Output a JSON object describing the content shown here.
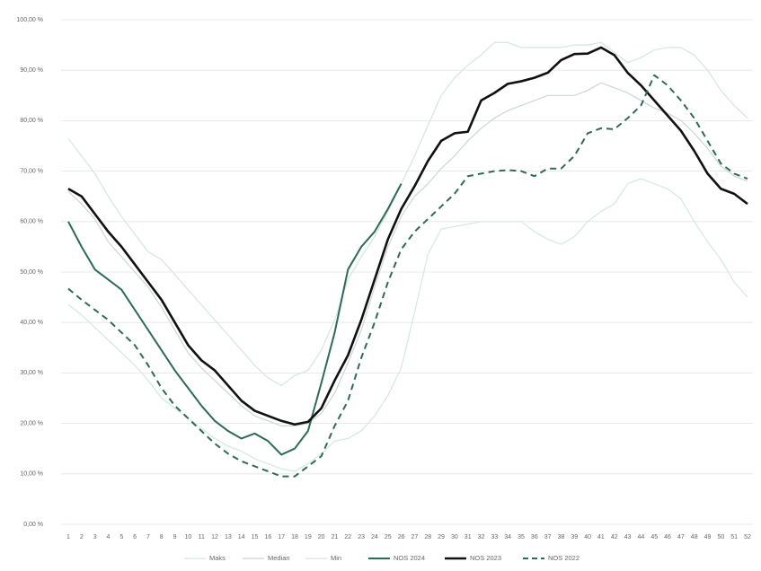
{
  "chart_data": {
    "type": "line",
    "categories": [
      "1",
      "2",
      "3",
      "4",
      "5",
      "6",
      "7",
      "8",
      "9",
      "10",
      "11",
      "12",
      "13",
      "14",
      "15",
      "16",
      "17",
      "18",
      "19",
      "20",
      "21",
      "22",
      "23",
      "24",
      "25",
      "26",
      "27",
      "28",
      "29",
      "30",
      "31",
      "32",
      "33",
      "34",
      "35",
      "36",
      "37",
      "38",
      "39",
      "40",
      "41",
      "42",
      "43",
      "44",
      "45",
      "46",
      "47",
      "48",
      "49",
      "50",
      "51",
      "52"
    ],
    "ylim": [
      0,
      100
    ],
    "yticks": [
      {
        "value": 0,
        "label": "0,00 %"
      },
      {
        "value": 10,
        "label": "10,00 %"
      },
      {
        "value": 20,
        "label": "20,00 %"
      },
      {
        "value": 30,
        "label": "30,00 %"
      },
      {
        "value": 40,
        "label": "40,00 %"
      },
      {
        "value": 50,
        "label": "50,00 %"
      },
      {
        "value": 60,
        "label": "60,00 %"
      },
      {
        "value": 70,
        "label": "70,00 %"
      },
      {
        "value": 80,
        "label": "80,00 %"
      },
      {
        "value": 90,
        "label": "90,00 %"
      },
      {
        "value": 100,
        "label": "100,00 %"
      }
    ],
    "grid": true,
    "legend": "bottom",
    "series": [
      {
        "name": "Maks",
        "color": "#d3e6df",
        "width": 1.2,
        "style": "solid",
        "values": [
          76.5,
          73,
          69.5,
          65,
          61,
          57.5,
          54,
          52.5,
          49.5,
          46.5,
          43.5,
          40.5,
          37.5,
          34.5,
          31.5,
          29,
          27.5,
          29.5,
          30.5,
          34.5,
          40.5,
          48.5,
          53,
          57,
          62,
          67.5,
          73,
          79,
          85,
          88.5,
          91,
          93,
          95.5,
          95.5,
          94.5,
          94.5,
          94.5,
          94.5,
          95,
          95,
          95.5,
          93.5,
          91.5,
          92.5,
          94,
          94.5,
          94.5,
          93,
          90,
          86,
          83,
          80.5
        ]
      },
      {
        "name": "Median",
        "color": "#cbd7d2",
        "width": 1.2,
        "style": "solid",
        "values": [
          66,
          63.5,
          60.5,
          56,
          53,
          50,
          47,
          43,
          38.5,
          34,
          31,
          28.5,
          26,
          23.5,
          21.5,
          20.5,
          19.5,
          19.5,
          20,
          22,
          26,
          32,
          38.5,
          47,
          55,
          61,
          65,
          67.5,
          70.5,
          73,
          76,
          78.5,
          80.5,
          82,
          83,
          84,
          85,
          85,
          85,
          86,
          87.5,
          86.5,
          85.5,
          84,
          82.5,
          81.5,
          80,
          77.5,
          74.5,
          71,
          69,
          68
        ]
      },
      {
        "name": "Min",
        "color": "#d2e8e3",
        "width": 1.2,
        "style": "solid",
        "values": [
          43.5,
          41.5,
          39,
          36.5,
          34,
          31.5,
          28.5,
          25,
          23,
          21,
          19,
          17,
          15.5,
          14.5,
          13,
          12,
          11,
          10.5,
          12,
          14,
          16.5,
          17,
          18.5,
          21.5,
          25.5,
          31,
          42,
          53.5,
          58.5,
          59,
          59.5,
          60,
          60,
          60,
          60,
          58,
          56.5,
          55.5,
          57,
          60,
          62,
          63.5,
          67.5,
          68.5,
          67.5,
          66.5,
          64.5,
          60,
          56,
          52.5,
          48,
          45
        ]
      },
      {
        "name": "NOS 2024",
        "color": "#2d6a58",
        "width": 2,
        "style": "solid",
        "values": [
          60,
          55,
          50.5,
          48.5,
          46.5,
          42.5,
          38.5,
          34.5,
          30.5,
          27,
          23.5,
          20.5,
          18.5,
          17,
          18,
          16.5,
          13.8,
          15,
          18.5,
          28,
          38,
          50.5,
          55,
          58,
          62.5,
          67.5,
          null,
          null,
          null,
          null,
          null,
          null,
          null,
          null,
          null,
          null,
          null,
          null,
          null,
          null,
          null,
          null,
          null,
          null,
          null,
          null,
          null,
          null,
          null,
          null,
          null,
          null
        ]
      },
      {
        "name": "NOS 2023",
        "color": "#111111",
        "width": 2.6,
        "style": "solid",
        "values": [
          66.5,
          65,
          61.5,
          58,
          55,
          51.5,
          48,
          44.5,
          40,
          35.5,
          32.5,
          30.5,
          27.5,
          24.5,
          22.5,
          21.5,
          20.5,
          19.8,
          20.3,
          23,
          28.5,
          33.5,
          40.5,
          48.5,
          56.5,
          62.5,
          67,
          72,
          76,
          77.5,
          77.8,
          84,
          85.5,
          87.3,
          87.8,
          88.5,
          89.5,
          92,
          93.2,
          93.3,
          94.5,
          93,
          89.5,
          87,
          84,
          81,
          78,
          74,
          69.5,
          66.5,
          65.5,
          63.5
        ]
      },
      {
        "name": "NOS 2022",
        "color": "#2d6a58",
        "width": 2,
        "style": "dashed",
        "values": [
          46.7,
          44.5,
          42.5,
          40.5,
          38,
          35.5,
          31.5,
          27,
          23.5,
          21,
          18.5,
          16,
          14,
          12.5,
          11.5,
          10.5,
          9.5,
          9.5,
          11.5,
          13.5,
          19.5,
          24.5,
          33,
          40,
          48,
          54.5,
          58,
          60.5,
          63,
          65.5,
          69,
          69.5,
          70,
          70.2,
          70,
          69,
          70.5,
          70.5,
          73,
          77.5,
          78.5,
          78.3,
          80.5,
          83,
          89,
          87,
          84,
          80.5,
          76,
          71.5,
          69.5,
          68.5
        ]
      }
    ]
  }
}
